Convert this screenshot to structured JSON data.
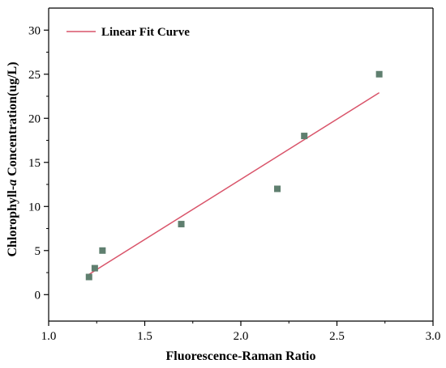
{
  "chart_data": {
    "type": "scatter",
    "xlabel": "Fluorescence-Raman Ratio",
    "ylabel_parts": [
      "Chlorophyll-",
      "a",
      " Concentration(ug/L)"
    ],
    "xlim": [
      1.0,
      3.0
    ],
    "ylim": [
      -3,
      32.5
    ],
    "xticks": [
      "1.0",
      "1.5",
      "2.0",
      "2.5",
      "3.0"
    ],
    "yticks": [
      "0",
      "5",
      "10",
      "15",
      "20",
      "25",
      "30"
    ],
    "grid": false,
    "legend_position": "top-left",
    "series": [
      {
        "kind": "points",
        "marker": "square",
        "color": "#5f7f6f",
        "x": [
          1.21,
          1.24,
          1.28,
          1.69,
          2.19,
          2.33,
          2.72
        ],
        "y": [
          2,
          3,
          5,
          8,
          12,
          18,
          25
        ]
      },
      {
        "kind": "line",
        "name": "Linear Fit Curve",
        "color": "#d9546a",
        "x": [
          1.21,
          2.72
        ],
        "y": [
          2.3,
          22.9
        ]
      }
    ]
  }
}
